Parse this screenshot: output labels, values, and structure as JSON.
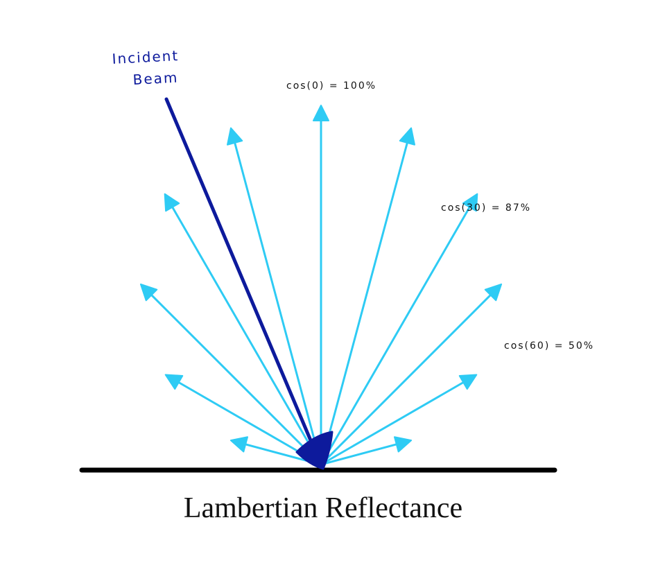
{
  "title": "Lambertian Reflectance",
  "incident": {
    "label_line1": "Incident",
    "label_line2": "Beam",
    "color": "#0d1a9c"
  },
  "rays": {
    "color": "#2ecbf4",
    "angles_deg": [
      -75,
      -60,
      -45,
      -30,
      -15,
      0,
      15,
      30,
      45,
      60,
      75
    ],
    "relative_lengths": [
      0.26,
      0.5,
      0.71,
      0.87,
      0.97,
      1.0,
      0.97,
      0.87,
      0.71,
      0.5,
      0.26
    ]
  },
  "annotations": [
    {
      "text": "cos(0) = 100%"
    },
    {
      "text": "cos(30) = 87%"
    },
    {
      "text": "cos(60) = 50%"
    }
  ],
  "surface_color": "#000000"
}
